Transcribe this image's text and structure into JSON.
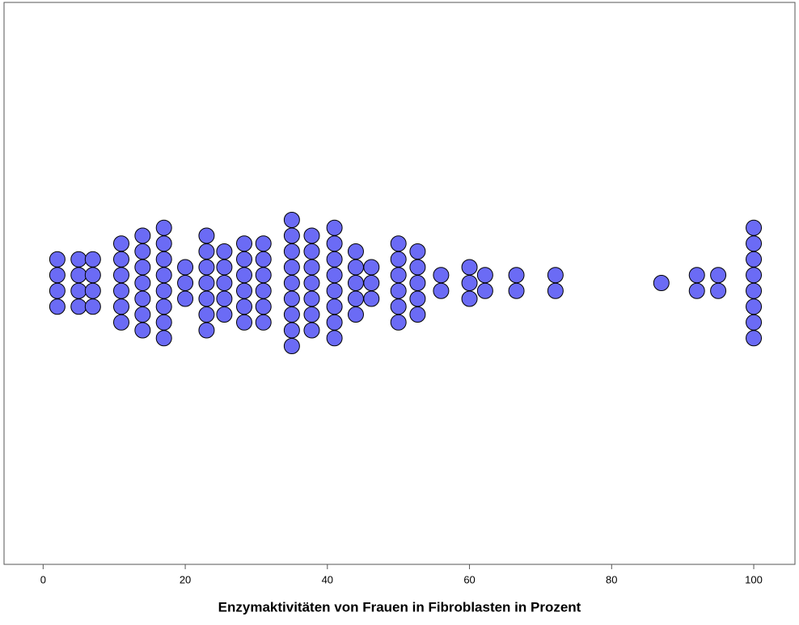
{
  "chart_data": {
    "type": "dotplot",
    "x_label": "Enzymaktivitäten von Frauen in Fibroblasten in Prozent",
    "color": "#6b6bf5",
    "values": [
      2,
      2,
      2,
      2,
      5,
      5,
      5,
      5,
      7,
      7,
      7,
      7,
      11,
      11,
      11,
      11,
      11,
      11,
      14,
      14,
      14,
      14,
      14,
      14,
      14,
      17,
      17,
      17,
      17,
      17,
      17,
      17,
      17,
      20,
      20,
      20,
      23,
      23,
      23,
      23,
      23,
      23,
      23,
      25.5,
      25.5,
      25.5,
      25.5,
      25.5,
      28.3,
      28.3,
      28.3,
      28.3,
      28.3,
      28.3,
      31,
      31,
      31,
      31,
      31,
      31,
      35,
      35,
      35,
      35,
      35,
      35,
      35,
      35,
      35,
      37.8,
      37.8,
      37.8,
      37.8,
      37.8,
      37.8,
      37.8,
      41,
      41,
      41,
      41,
      41,
      41,
      41,
      41,
      44,
      44,
      44,
      44,
      44,
      46.2,
      46.2,
      46.2,
      50,
      50,
      50,
      50,
      50,
      50,
      52.7,
      52.7,
      52.7,
      52.7,
      52.7,
      56,
      56,
      60,
      60,
      60,
      62.2,
      62.2,
      66.6,
      66.6,
      72.1,
      72.1,
      87,
      92,
      92,
      95,
      95,
      100,
      100,
      100,
      100,
      100,
      100,
      100,
      100
    ],
    "xlim": [
      -5.5,
      105.8
    ],
    "xticks": [
      0,
      20,
      40,
      60,
      80,
      100
    ]
  }
}
